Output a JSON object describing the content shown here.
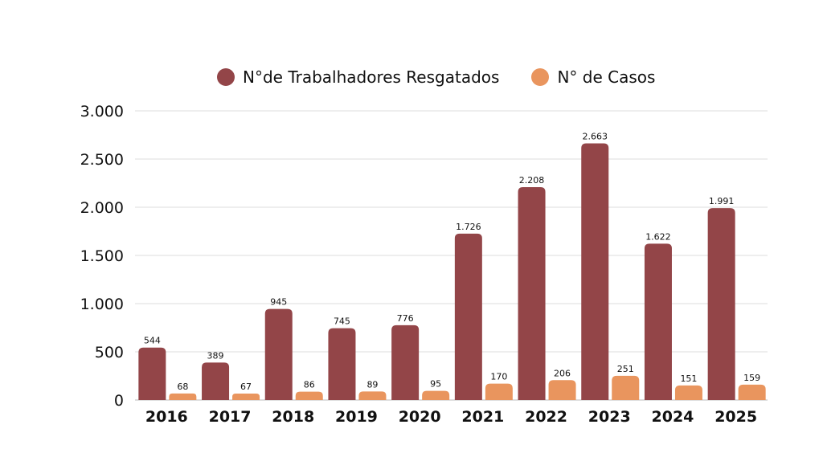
{
  "chart_data": {
    "type": "bar",
    "title": "",
    "xlabel": "",
    "ylabel": "",
    "ylim": [
      0,
      3000
    ],
    "yticks": [
      "0",
      "500",
      "1.000",
      "1.500",
      "2.000",
      "2.500",
      "3.000"
    ],
    "ytick_values": [
      0,
      500,
      1000,
      1500,
      2000,
      2500,
      3000
    ],
    "grid": true,
    "legend_position": "top",
    "categories": [
      "2016",
      "2017",
      "2018",
      "2019",
      "2020",
      "2021",
      "2022",
      "2023",
      "2024",
      "2025"
    ],
    "series": [
      {
        "name": "N°de Trabalhadores Resgatados",
        "color": "#934548",
        "values": [
          544,
          389,
          945,
          745,
          776,
          1726,
          2208,
          2663,
          1622,
          1991
        ],
        "labels": [
          "544",
          "389",
          "945",
          "745",
          "776",
          "1.726",
          "2.208",
          "2.663",
          "1.622",
          "1.991"
        ]
      },
      {
        "name": "N° de Casos",
        "color": "#E9955E",
        "values": [
          68,
          67,
          86,
          89,
          95,
          170,
          206,
          251,
          151,
          159
        ],
        "labels": [
          "68",
          "67",
          "86",
          "89",
          "95",
          "170",
          "206",
          "251",
          "151",
          "159"
        ]
      }
    ]
  }
}
